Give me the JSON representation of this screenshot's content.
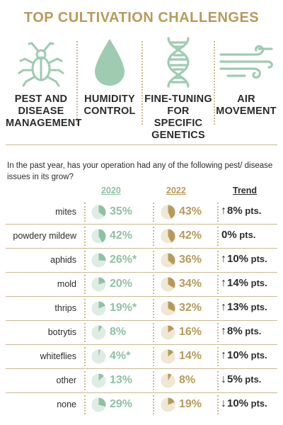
{
  "title": "TOP CULTIVATION CHALLENGES",
  "challenges": [
    {
      "label": "PEST AND DISEASE MANAGEMENT",
      "icon": "bug-icon"
    },
    {
      "label": "HUMIDITY CONTROL",
      "icon": "water-drop-icon"
    },
    {
      "label": "FINE-TUNING FOR SPECIFIC GENETICS",
      "icon": "dna-icon"
    },
    {
      "label": "AIR MOVEMENT",
      "icon": "wind-icon"
    }
  ],
  "question": "In the past year, has your operation had any of the following pest/ disease issues in its grow?",
  "columns": {
    "y2020": "2020",
    "y2022": "2022",
    "trend": "Trend"
  },
  "colors": {
    "gold": "#b79a5a",
    "green": "#8fc1a3",
    "green_icon": "#9fcbb1",
    "pie_bg_green": "#deede3",
    "pie_bg_gold": "#efe6d4",
    "rule": "#c9b98f"
  },
  "rows": [
    {
      "name": "mites",
      "v2020": "35%",
      "p2020": 35,
      "v2022": "43%",
      "p2022": 43,
      "arrow": "↑",
      "trend": "8%",
      "pts": " pts."
    },
    {
      "name": "powdery mildew",
      "v2020": "42%",
      "p2020": 42,
      "v2022": "42%",
      "p2022": 42,
      "arrow": "",
      "trend": "0%",
      "pts": " pts."
    },
    {
      "name": "aphids",
      "v2020": "26%*",
      "p2020": 26,
      "v2022": "36%",
      "p2022": 36,
      "arrow": "↑",
      "trend": "10%",
      "pts": " pts."
    },
    {
      "name": "mold",
      "v2020": "20%",
      "p2020": 20,
      "v2022": "34%",
      "p2022": 34,
      "arrow": "↑",
      "trend": "14%",
      "pts": " pts."
    },
    {
      "name": "thrips",
      "v2020": "19%*",
      "p2020": 19,
      "v2022": "32%",
      "p2022": 32,
      "arrow": "↑",
      "trend": "13%",
      "pts": " pts."
    },
    {
      "name": "botrytis",
      "v2020": "8%",
      "p2020": 8,
      "v2022": "16%",
      "p2022": 16,
      "arrow": "↑",
      "trend": "8%",
      "pts": " pts."
    },
    {
      "name": "whiteflies",
      "v2020": "4%*",
      "p2020": 4,
      "v2022": "14%",
      "p2022": 14,
      "arrow": "↑",
      "trend": "10%",
      "pts": " pts."
    },
    {
      "name": "other",
      "v2020": "13%",
      "p2020": 13,
      "v2022": "8%",
      "p2022": 8,
      "arrow": "↓",
      "trend": "5%",
      "pts": " pts."
    },
    {
      "name": "none",
      "v2020": "29%",
      "p2020": 29,
      "v2022": "19%",
      "p2022": 19,
      "arrow": "↓",
      "trend": "10%",
      "pts": " pts."
    }
  ]
}
